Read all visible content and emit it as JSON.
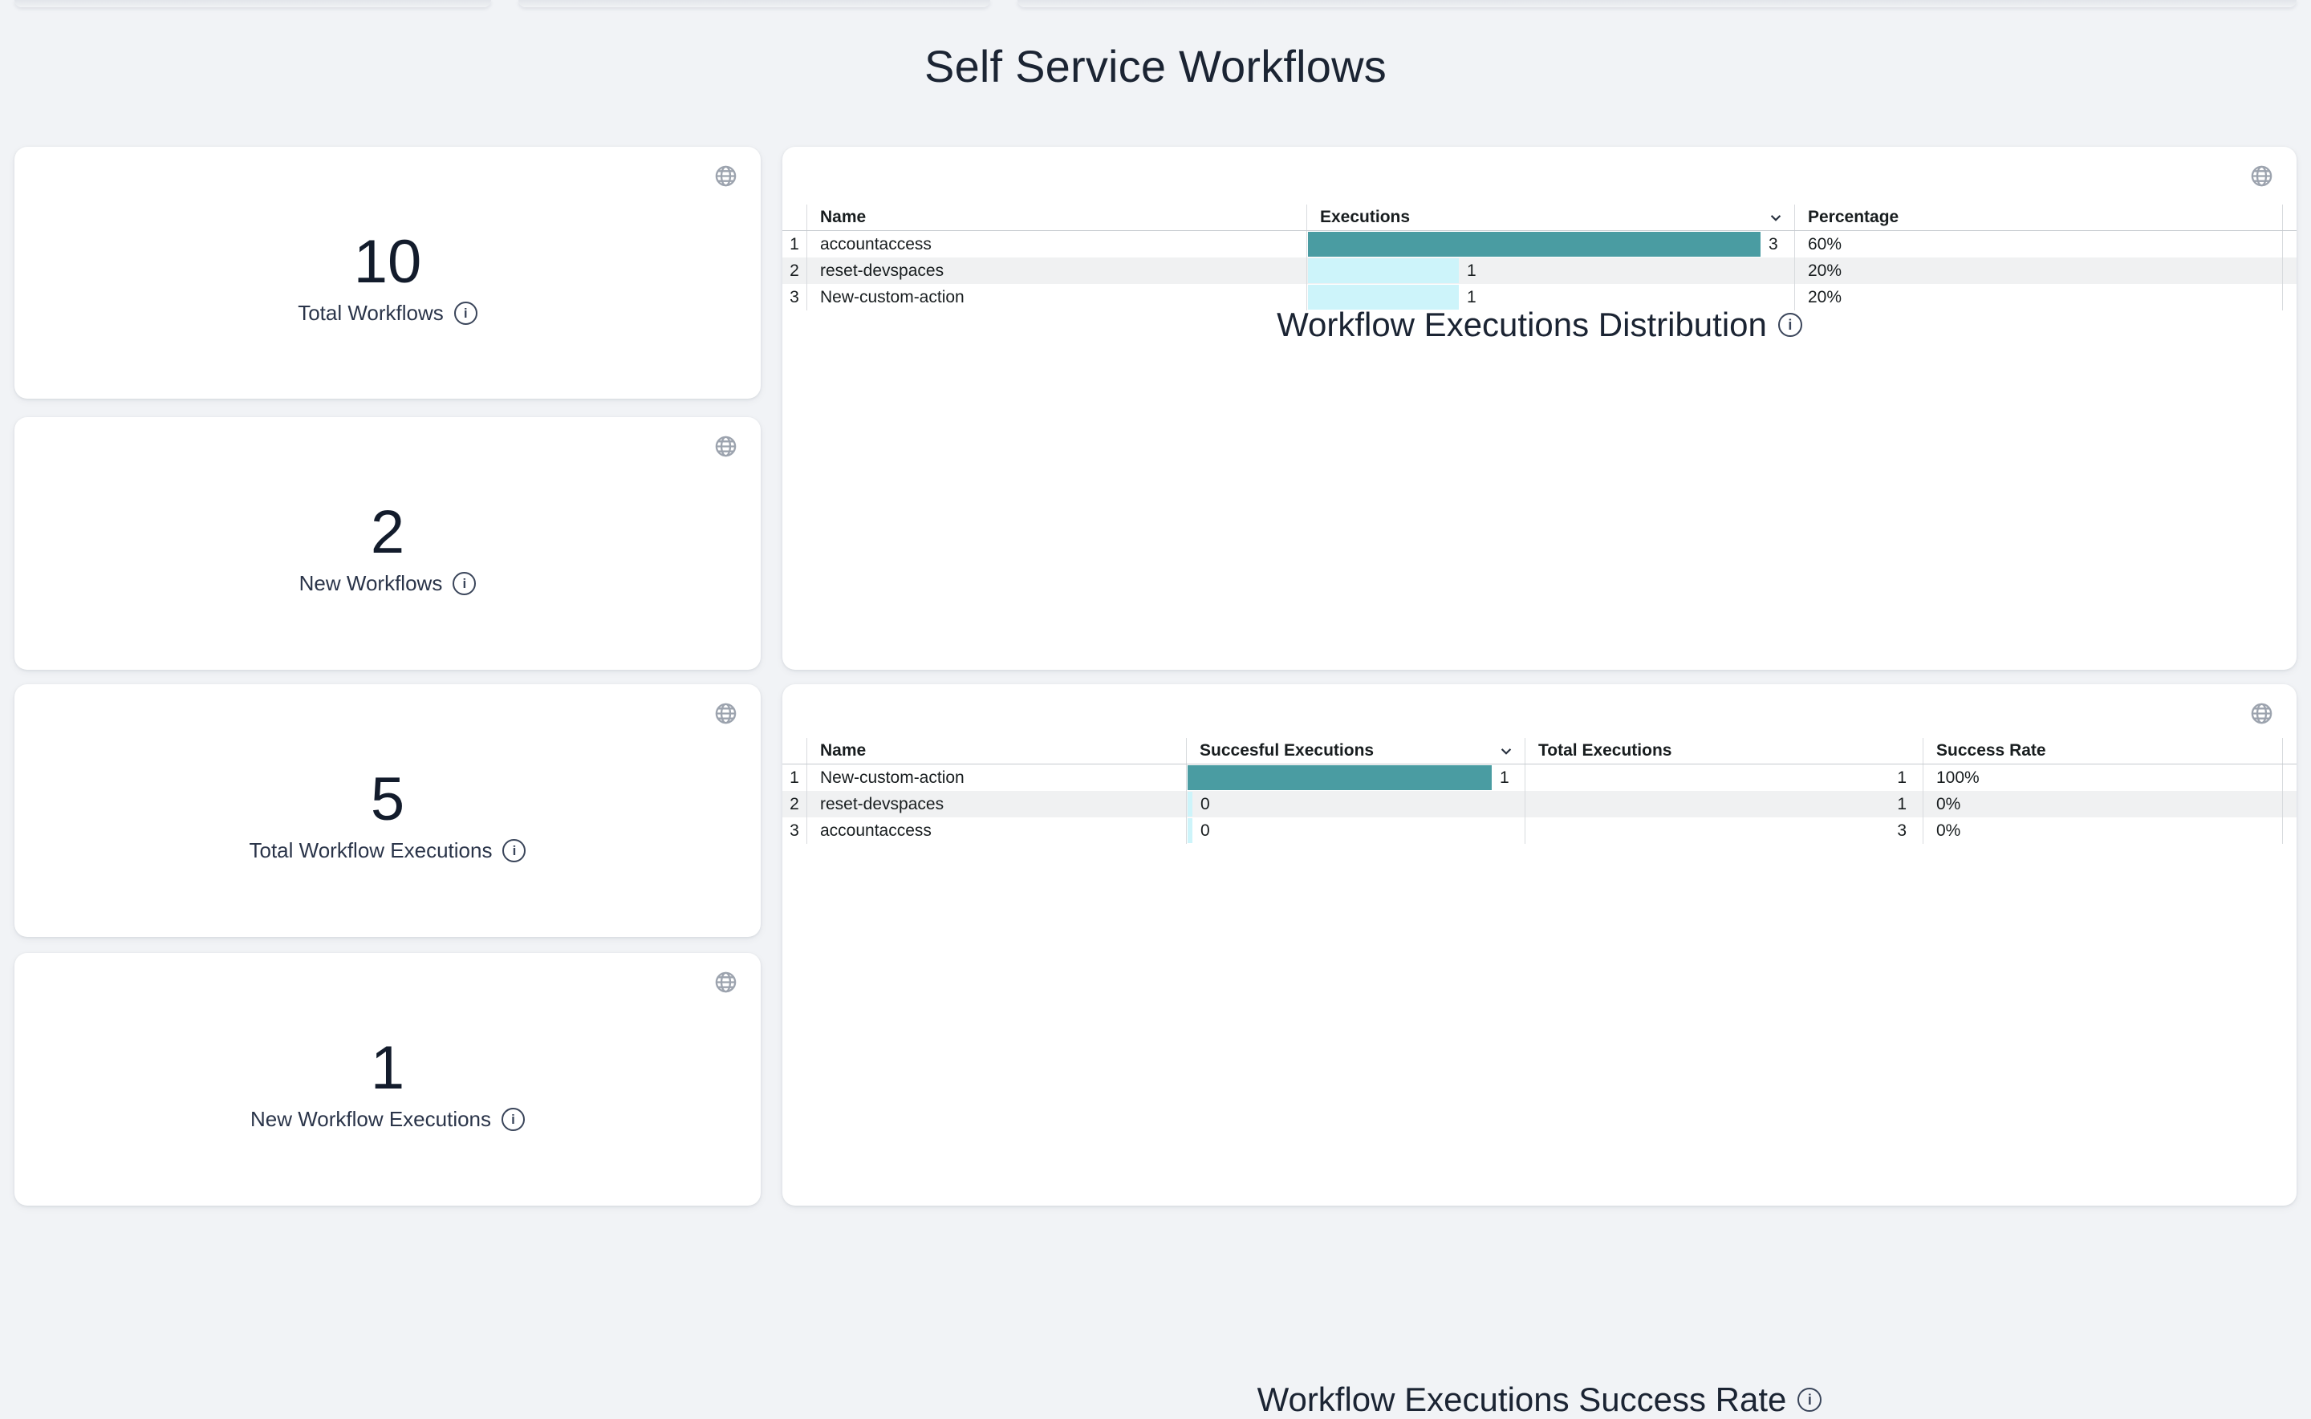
{
  "page": {
    "title": "Self Service Workflows"
  },
  "colors": {
    "background": "#f1f3f6",
    "card": "#ffffff",
    "accent_teal": "#4a9ca2",
    "accent_light_cyan": "#cdf4fa",
    "row_stripe": "#f0f1f2",
    "text_navy": "#1b2433"
  },
  "icons": {
    "globe": "language-globe",
    "info": "info-circle",
    "sort": "chevron-down"
  },
  "stat_cards": [
    {
      "value": "10",
      "label": "Total Workflows"
    },
    {
      "value": "2",
      "label": "New Workflows"
    },
    {
      "value": "5",
      "label": "Total Workflow Executions"
    },
    {
      "value": "1",
      "label": "New Workflow Executions"
    }
  ],
  "distribution_table": {
    "title": "Workflow Executions Distribution",
    "columns": {
      "name": "Name",
      "executions": "Executions",
      "percentage": "Percentage"
    },
    "sorted_by": "executions",
    "max_executions": 3,
    "rows": [
      {
        "index": "1",
        "name": "accountaccess",
        "executions": "3",
        "percentage": "60%"
      },
      {
        "index": "2",
        "name": "reset-devspaces",
        "executions": "1",
        "percentage": "20%"
      },
      {
        "index": "3",
        "name": "New-custom-action",
        "executions": "1",
        "percentage": "20%"
      }
    ]
  },
  "success_table": {
    "title": "Workflow Executions Success Rate",
    "columns": {
      "name": "Name",
      "successful": "Succesful Executions",
      "total": "Total Executions",
      "rate": "Success Rate"
    },
    "sorted_by": "successful",
    "max_successful": 1,
    "rows": [
      {
        "index": "1",
        "name": "New-custom-action",
        "successful": "1",
        "total": "1",
        "rate": "100%"
      },
      {
        "index": "2",
        "name": "reset-devspaces",
        "successful": "0",
        "total": "1",
        "rate": "0%"
      },
      {
        "index": "3",
        "name": "accountaccess",
        "successful": "0",
        "total": "3",
        "rate": "0%"
      }
    ]
  }
}
